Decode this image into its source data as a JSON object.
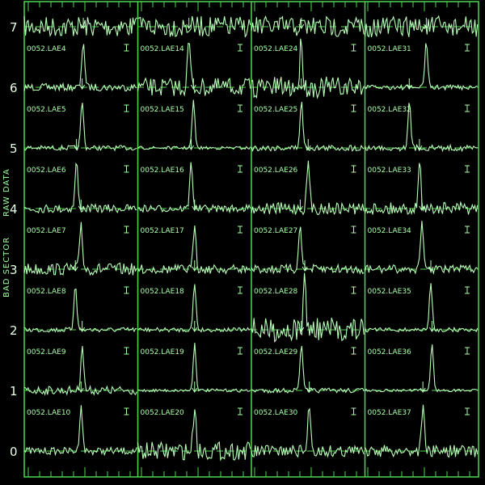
{
  "colors": {
    "background": "#000000",
    "trace": "#b8ffb8",
    "frame": "#4fd84f",
    "text": "#a8ffa8"
  },
  "side_labels": {
    "top": "RAW DATA",
    "bottom": "BAD SECTOR"
  },
  "chart_data": {
    "type": "line",
    "layout": "stacked spectra, 4 columns",
    "y_ticks": [
      "0",
      "1",
      "2",
      "3",
      "4",
      "5",
      "6",
      "7"
    ],
    "ylim": [
      0,
      7.4
    ],
    "grid": false,
    "columns": [
      {
        "panels": [
          {
            "label": "0052.LAE4",
            "offset": 6,
            "peak_x": 52,
            "noise": 0.12
          },
          {
            "label": "0052.LAE5",
            "offset": 5,
            "peak_x": 51,
            "noise": 0.08
          },
          {
            "label": "0052.LAE6",
            "offset": 4,
            "peak_x": 46,
            "noise": 0.14
          },
          {
            "label": "0052.LAE7",
            "offset": 3,
            "peak_x": 50,
            "noise": 0.2
          },
          {
            "label": "0052.LAE8",
            "offset": 2,
            "peak_x": 45,
            "noise": 0.08
          },
          {
            "label": "0052.LAE9",
            "offset": 1,
            "peak_x": 51,
            "noise": 0.14
          },
          {
            "label": "0052.LAE10",
            "offset": 0,
            "peak_x": 50,
            "noise": 0.12
          }
        ]
      },
      {
        "panels": [
          {
            "label": "0052.LAE14",
            "offset": 6,
            "peak_x": 45,
            "noise": 0.3
          },
          {
            "label": "0052.LAE15",
            "offset": 5,
            "peak_x": 49,
            "noise": 0.05
          },
          {
            "label": "0052.LAE16",
            "offset": 4,
            "peak_x": 47,
            "noise": 0.12
          },
          {
            "label": "0052.LAE17",
            "offset": 3,
            "peak_x": 50,
            "noise": 0.15
          },
          {
            "label": "0052.LAE18",
            "offset": 2,
            "peak_x": 50,
            "noise": 0.07
          },
          {
            "label": "0052.LAE19",
            "offset": 1,
            "peak_x": 50,
            "noise": 0.05
          },
          {
            "label": "0052.LAE20",
            "offset": 0,
            "peak_x": 50,
            "noise": 0.3
          }
        ]
      },
      {
        "panels": [
          {
            "label": "0052.LAE24",
            "offset": 6,
            "peak_x": 44,
            "noise": 0.35
          },
          {
            "label": "0052.LAE25",
            "offset": 5,
            "peak_x": 44,
            "noise": 0.1
          },
          {
            "label": "0052.LAE26",
            "offset": 4,
            "peak_x": 50,
            "noise": 0.2
          },
          {
            "label": "0052.LAE27",
            "offset": 3,
            "peak_x": 43,
            "noise": 0.15
          },
          {
            "label": "0052.LAE28",
            "offset": 2,
            "peak_x": 47,
            "noise": 0.4
          },
          {
            "label": "0052.LAE29",
            "offset": 1,
            "peak_x": 44,
            "noise": 0.08
          },
          {
            "label": "0052.LAE30",
            "offset": 0,
            "peak_x": 51,
            "noise": 0.2
          }
        ]
      },
      {
        "panels": [
          {
            "label": "0052.LAE31",
            "offset": 6,
            "peak_x": 54,
            "noise": 0.08
          },
          {
            "label": "0052.LAE32",
            "offset": 5,
            "peak_x": 39,
            "noise": 0.1
          },
          {
            "label": "0052.LAE33",
            "offset": 4,
            "peak_x": 48,
            "noise": 0.2
          },
          {
            "label": "0052.LAE34",
            "offset": 3,
            "peak_x": 50,
            "noise": 0.14
          },
          {
            "label": "0052.LAE35",
            "offset": 2,
            "peak_x": 58,
            "noise": 0.07
          },
          {
            "label": "0052.LAE36",
            "offset": 1,
            "peak_x": 59,
            "noise": 0.04
          },
          {
            "label": "0052.LAE37",
            "offset": 0,
            "peak_x": 51,
            "noise": 0.2
          }
        ]
      }
    ]
  }
}
